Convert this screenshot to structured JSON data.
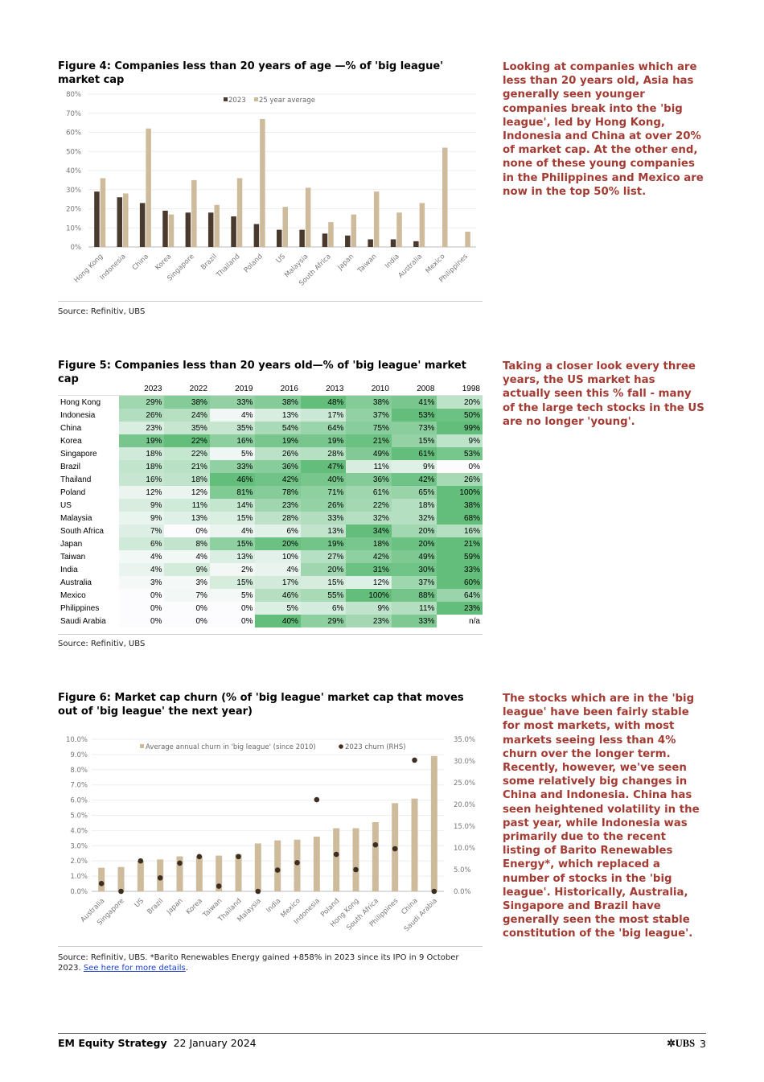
{
  "figure4": {
    "title": "Figure 4: Companies less than 20 years of age —% of 'big league' market cap",
    "source": "Source: Refinitiv, UBS",
    "chart_data": {
      "type": "bar",
      "title": "Companies less than 20 years of age — % of 'big league' market cap",
      "categories": [
        "Hong Kong",
        "Indonesia",
        "China",
        "Korea",
        "Singapore",
        "Brazil",
        "Thailand",
        "Poland",
        "US",
        "Malaysia",
        "South Africa",
        "Japan",
        "Taiwan",
        "India",
        "Australia",
        "Mexico",
        "Philippines"
      ],
      "series": [
        {
          "name": "2023",
          "color": "#4a3a2e",
          "values": [
            29,
            26,
            23,
            19,
            18,
            18,
            16,
            12,
            9,
            9,
            7,
            6,
            4,
            4,
            3,
            0,
            0
          ]
        },
        {
          "name": "25 year average",
          "color": "#cdbb9b",
          "values": [
            36,
            28,
            62,
            17,
            35,
            22,
            36,
            67,
            21,
            31,
            13,
            17,
            29,
            18,
            23,
            52,
            8
          ]
        }
      ],
      "yticks": [
        "0%",
        "10%",
        "20%",
        "30%",
        "40%",
        "50%",
        "60%",
        "70%",
        "80%"
      ],
      "ylim": [
        0,
        80
      ],
      "legend": "top-center",
      "grid": true
    }
  },
  "figure5": {
    "title": "Figure 5: Companies less than 20 years old—% of 'big league' market cap",
    "source": "Source: Refinitiv, UBS",
    "columns": [
      "2023",
      "2022",
      "2019",
      "2016",
      "2013",
      "2010",
      "2008",
      "1998"
    ],
    "rows": [
      {
        "name": "Hong Kong",
        "values": [
          "29%",
          "38%",
          "33%",
          "38%",
          "48%",
          "38%",
          "41%",
          "20%"
        ]
      },
      {
        "name": "Indonesia",
        "values": [
          "26%",
          "24%",
          "4%",
          "13%",
          "17%",
          "37%",
          "53%",
          "50%"
        ]
      },
      {
        "name": "China",
        "values": [
          "23%",
          "35%",
          "35%",
          "54%",
          "64%",
          "75%",
          "73%",
          "99%"
        ]
      },
      {
        "name": "Korea",
        "values": [
          "19%",
          "22%",
          "16%",
          "19%",
          "19%",
          "21%",
          "15%",
          "9%"
        ]
      },
      {
        "name": "Singapore",
        "values": [
          "18%",
          "22%",
          "5%",
          "26%",
          "28%",
          "49%",
          "61%",
          "53%"
        ]
      },
      {
        "name": "Brazil",
        "values": [
          "18%",
          "21%",
          "33%",
          "36%",
          "47%",
          "11%",
          "9%",
          "0%"
        ]
      },
      {
        "name": "Thailand",
        "values": [
          "16%",
          "18%",
          "46%",
          "42%",
          "40%",
          "36%",
          "42%",
          "26%"
        ]
      },
      {
        "name": "Poland",
        "values": [
          "12%",
          "12%",
          "81%",
          "78%",
          "71%",
          "61%",
          "65%",
          "100%"
        ]
      },
      {
        "name": "US",
        "values": [
          "9%",
          "11%",
          "14%",
          "23%",
          "26%",
          "22%",
          "18%",
          "38%"
        ]
      },
      {
        "name": "Malaysia",
        "values": [
          "9%",
          "13%",
          "15%",
          "28%",
          "33%",
          "32%",
          "32%",
          "68%"
        ]
      },
      {
        "name": "South Africa",
        "values": [
          "7%",
          "0%",
          "4%",
          "6%",
          "13%",
          "34%",
          "20%",
          "16%"
        ]
      },
      {
        "name": "Japan",
        "values": [
          "6%",
          "8%",
          "15%",
          "20%",
          "19%",
          "18%",
          "20%",
          "21%"
        ]
      },
      {
        "name": "Taiwan",
        "values": [
          "4%",
          "4%",
          "13%",
          "10%",
          "27%",
          "42%",
          "49%",
          "59%"
        ]
      },
      {
        "name": "India",
        "values": [
          "4%",
          "9%",
          "2%",
          "4%",
          "20%",
          "31%",
          "30%",
          "33%"
        ]
      },
      {
        "name": "Australia",
        "values": [
          "3%",
          "3%",
          "15%",
          "17%",
          "15%",
          "12%",
          "37%",
          "60%"
        ]
      },
      {
        "name": "Mexico",
        "values": [
          "0%",
          "7%",
          "5%",
          "46%",
          "55%",
          "100%",
          "88%",
          "64%"
        ]
      },
      {
        "name": "Philippines",
        "values": [
          "0%",
          "0%",
          "0%",
          "5%",
          "6%",
          "9%",
          "11%",
          "23%"
        ]
      },
      {
        "name": "Saudi Arabia",
        "values": [
          "0%",
          "0%",
          "0%",
          "40%",
          "29%",
          "23%",
          "33%",
          "n/a"
        ]
      }
    ]
  },
  "figure6": {
    "title": "Figure 6: Market cap churn (% of 'big league' market cap that moves out of 'big league' the next year)",
    "source": "Source: Refinitiv, UBS. *Barito Renewables Energy gained +858% in 2023 since its IPO in 9 October 2023.",
    "link": "See here for more details",
    "chart_data": {
      "type": "bar",
      "categories": [
        "Australia",
        "Singapore",
        "US",
        "Brazil",
        "Japan",
        "Korea",
        "Taiwan",
        "Thailand",
        "Malaysia",
        "India",
        "Mexico",
        "Indonesia",
        "Poland",
        "Hong Kong",
        "South Africa",
        "Philippines",
        "China",
        "Saudi Arabia"
      ],
      "series": [
        {
          "name": "Average annual churn in 'big league' (since 2010)",
          "type": "bar",
          "axis": "left",
          "color": "#cdbb9b",
          "values": [
            1.55,
            1.6,
            2.0,
            2.1,
            2.3,
            2.3,
            2.35,
            2.45,
            3.15,
            3.35,
            3.4,
            3.6,
            4.15,
            4.15,
            4.55,
            5.8,
            6.1,
            8.9
          ]
        },
        {
          "name": "2023 churn (RHS)",
          "type": "scatter",
          "axis": "right",
          "color": "#3d2e24",
          "values": [
            1.8,
            0,
            7.0,
            3.1,
            6.5,
            8.0,
            1.2,
            8.0,
            0,
            4.9,
            6.6,
            21.1,
            8.5,
            5.0,
            10.7,
            9.8,
            30.2,
            0
          ]
        }
      ],
      "yticks_left": [
        "0.0%",
        "1.0%",
        "2.0%",
        "3.0%",
        "4.0%",
        "5.0%",
        "6.0%",
        "7.0%",
        "8.0%",
        "9.0%",
        "10.0%"
      ],
      "yticks_right": [
        "0.0%",
        "5.0%",
        "10.0%",
        "15.0%",
        "20.0%",
        "25.0%",
        "30.0%",
        "35.0%"
      ],
      "ylim_left": [
        0,
        10
      ],
      "ylim_right": [
        0,
        35
      ],
      "legend": "top-center",
      "grid": true
    }
  },
  "commentary": [
    "Looking at companies which are less than 20 years old, Asia has generally seen younger companies break into the 'big league', led by Hong Kong, Indonesia and China at over 20% of market cap. At the other end, none of these young companies in the Philippines and Mexico are now in the top 50% list.",
    "Taking a closer look every three years, the US market has actually seen this % fall - many of the large tech stocks in the US are no longer 'young'.",
    "The stocks which are in the 'big league' have been fairly stable for most markets, with most markets seeing less than 4% churn over the longer term. Recently, however, we've seen some relatively big changes in China and Indonesia. China has seen heightened volatility in the past year, while Indonesia was primarily due to the recent listing of Barito Renewables Energy*, which replaced a number of stocks in the 'big league'. Historically, Australia, Singapore and Brazil have generally seen the most stable constitution of the 'big league'."
  ],
  "footer": {
    "publication": "EM Equity Strategy",
    "date": "22 January 2024",
    "logo": "UBS",
    "page": "3"
  }
}
